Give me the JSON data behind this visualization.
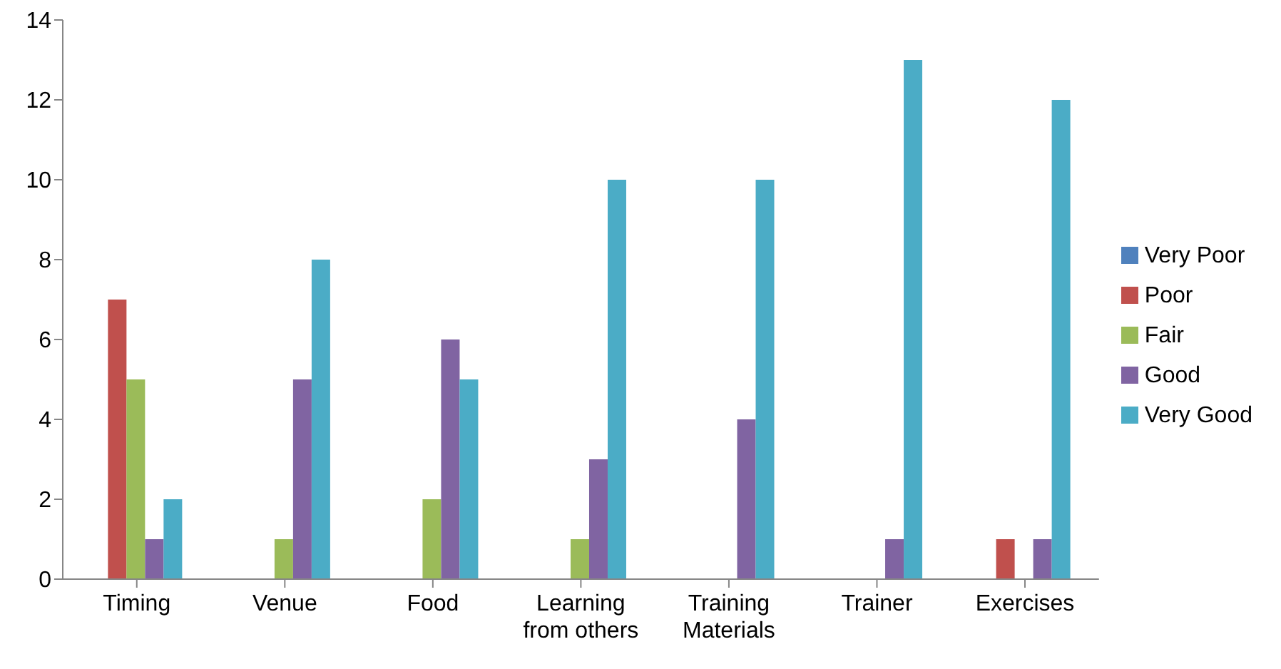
{
  "chart_data": {
    "type": "bar",
    "categories": [
      "Timing",
      "Venue",
      "Food",
      "Learning from others",
      "Training Materials",
      "Trainer",
      "Exercises"
    ],
    "series": [
      {
        "name": "Very Poor",
        "color": "#4f81bd",
        "values": [
          0,
          0,
          0,
          0,
          0,
          0,
          0
        ]
      },
      {
        "name": "Poor",
        "color": "#c0504d",
        "values": [
          7,
          0,
          0,
          0,
          0,
          0,
          1
        ]
      },
      {
        "name": "Fair",
        "color": "#9bbb59",
        "values": [
          5,
          1,
          2,
          1,
          0,
          0,
          0
        ]
      },
      {
        "name": "Good",
        "color": "#8064a2",
        "values": [
          1,
          5,
          6,
          3,
          4,
          1,
          1
        ]
      },
      {
        "name": "Very Good",
        "color": "#4bacc6",
        "values": [
          2,
          8,
          5,
          10,
          10,
          13,
          12
        ]
      }
    ],
    "ylim": [
      0,
      14
    ],
    "yticks": [
      0,
      2,
      4,
      6,
      8,
      10,
      12,
      14
    ],
    "grid": false,
    "legend": "right"
  }
}
